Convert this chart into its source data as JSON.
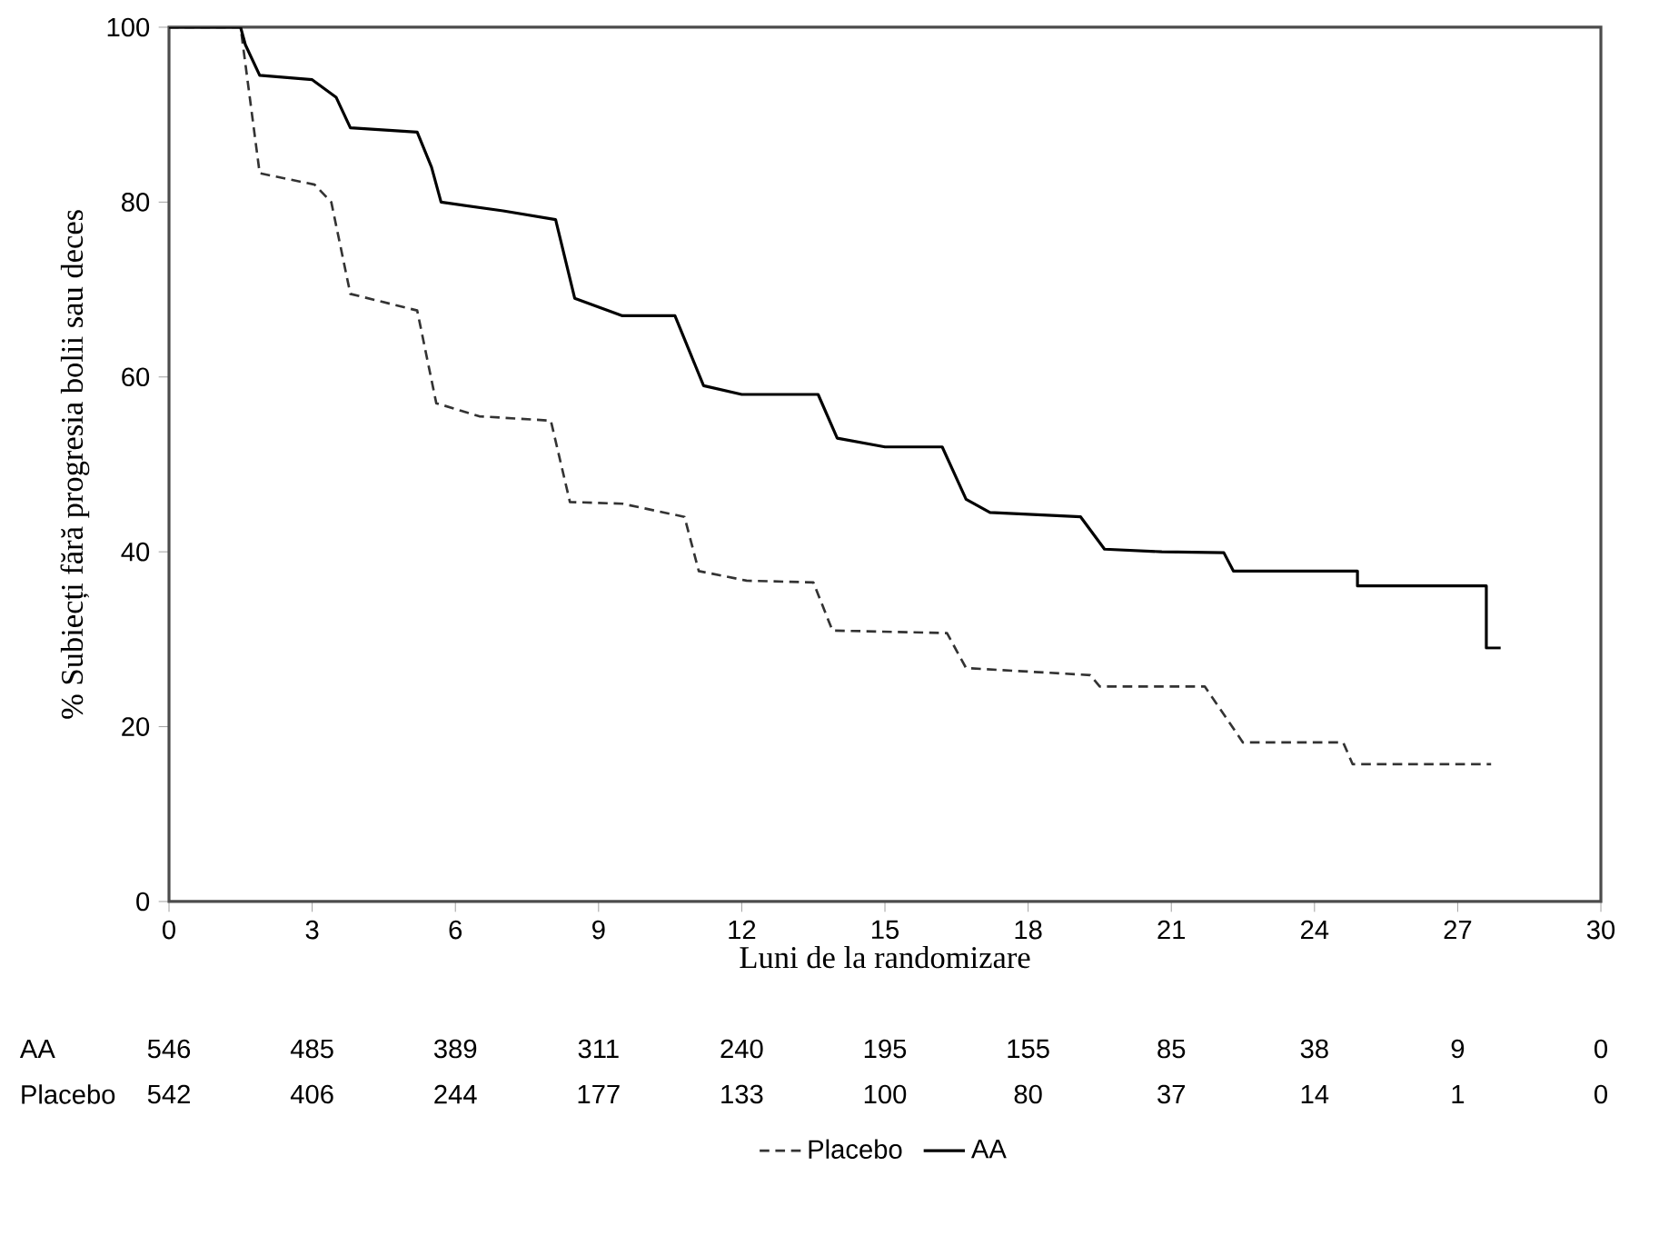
{
  "chart_data": {
    "type": "line",
    "xlabel": "Luni de la randomizare",
    "ylabel": "% Subiecți fără progresia bolii sau deces",
    "xlim": [
      0,
      30
    ],
    "ylim": [
      0,
      100
    ],
    "xticks": [
      0,
      3,
      6,
      9,
      12,
      15,
      18,
      21,
      24,
      27,
      30
    ],
    "yticks": [
      0,
      20,
      40,
      60,
      80,
      100
    ],
    "grid": false,
    "legend": "bottom",
    "marker": "none",
    "series": [
      {
        "name": "Placebo",
        "color": "#333333",
        "line_style": "dashed",
        "x": [
          0,
          1.5,
          1.9,
          3.05,
          3.4,
          3.8,
          5.2,
          5.6,
          6.5,
          8.0,
          8.4,
          9.5,
          10.8,
          11.1,
          12.1,
          13.5,
          13.9,
          16.3,
          16.7,
          19.3,
          19.5,
          21.7,
          22.5,
          24.6,
          24.8,
          27.7
        ],
        "values": [
          100,
          100,
          83.3,
          82,
          80,
          69.5,
          67.6,
          57,
          55.5,
          55,
          45.7,
          45.5,
          44,
          37.8,
          36.7,
          36.5,
          31,
          30.7,
          26.7,
          25.9,
          24.6,
          24.6,
          18.2,
          18.2,
          15.7,
          15.7
        ]
      },
      {
        "name": "AA",
        "color": "#000000",
        "line_style": "solid",
        "x": [
          0,
          1.5,
          1.6,
          1.9,
          3.0,
          3.5,
          3.8,
          5.2,
          5.5,
          5.7,
          7.0,
          8.1,
          8.5,
          9.5,
          10.6,
          11.2,
          12.0,
          13.6,
          14.0,
          15.0,
          16.2,
          16.7,
          17.2,
          19.1,
          19.6,
          20.8,
          22.1,
          22.3,
          24.9,
          24.9,
          27.6,
          27.6,
          27.9
        ],
        "values": [
          100,
          100,
          98,
          94.5,
          94,
          92,
          88.5,
          88,
          84,
          80,
          79,
          78,
          69,
          67,
          67,
          59,
          58,
          58,
          53,
          52,
          52,
          46,
          44.5,
          44,
          40.3,
          40,
          39.9,
          37.8,
          37.8,
          36.1,
          36.1,
          29,
          29
        ]
      }
    ],
    "annotations": [
      "AA",
      "546",
      "485",
      "389",
      "311",
      "240",
      "195",
      "155",
      "85",
      "38",
      "9",
      "0",
      "Placebo",
      "542",
      "406",
      "244",
      "177",
      "133",
      "100",
      "80",
      "37",
      "14",
      "1",
      "0"
    ]
  }
}
